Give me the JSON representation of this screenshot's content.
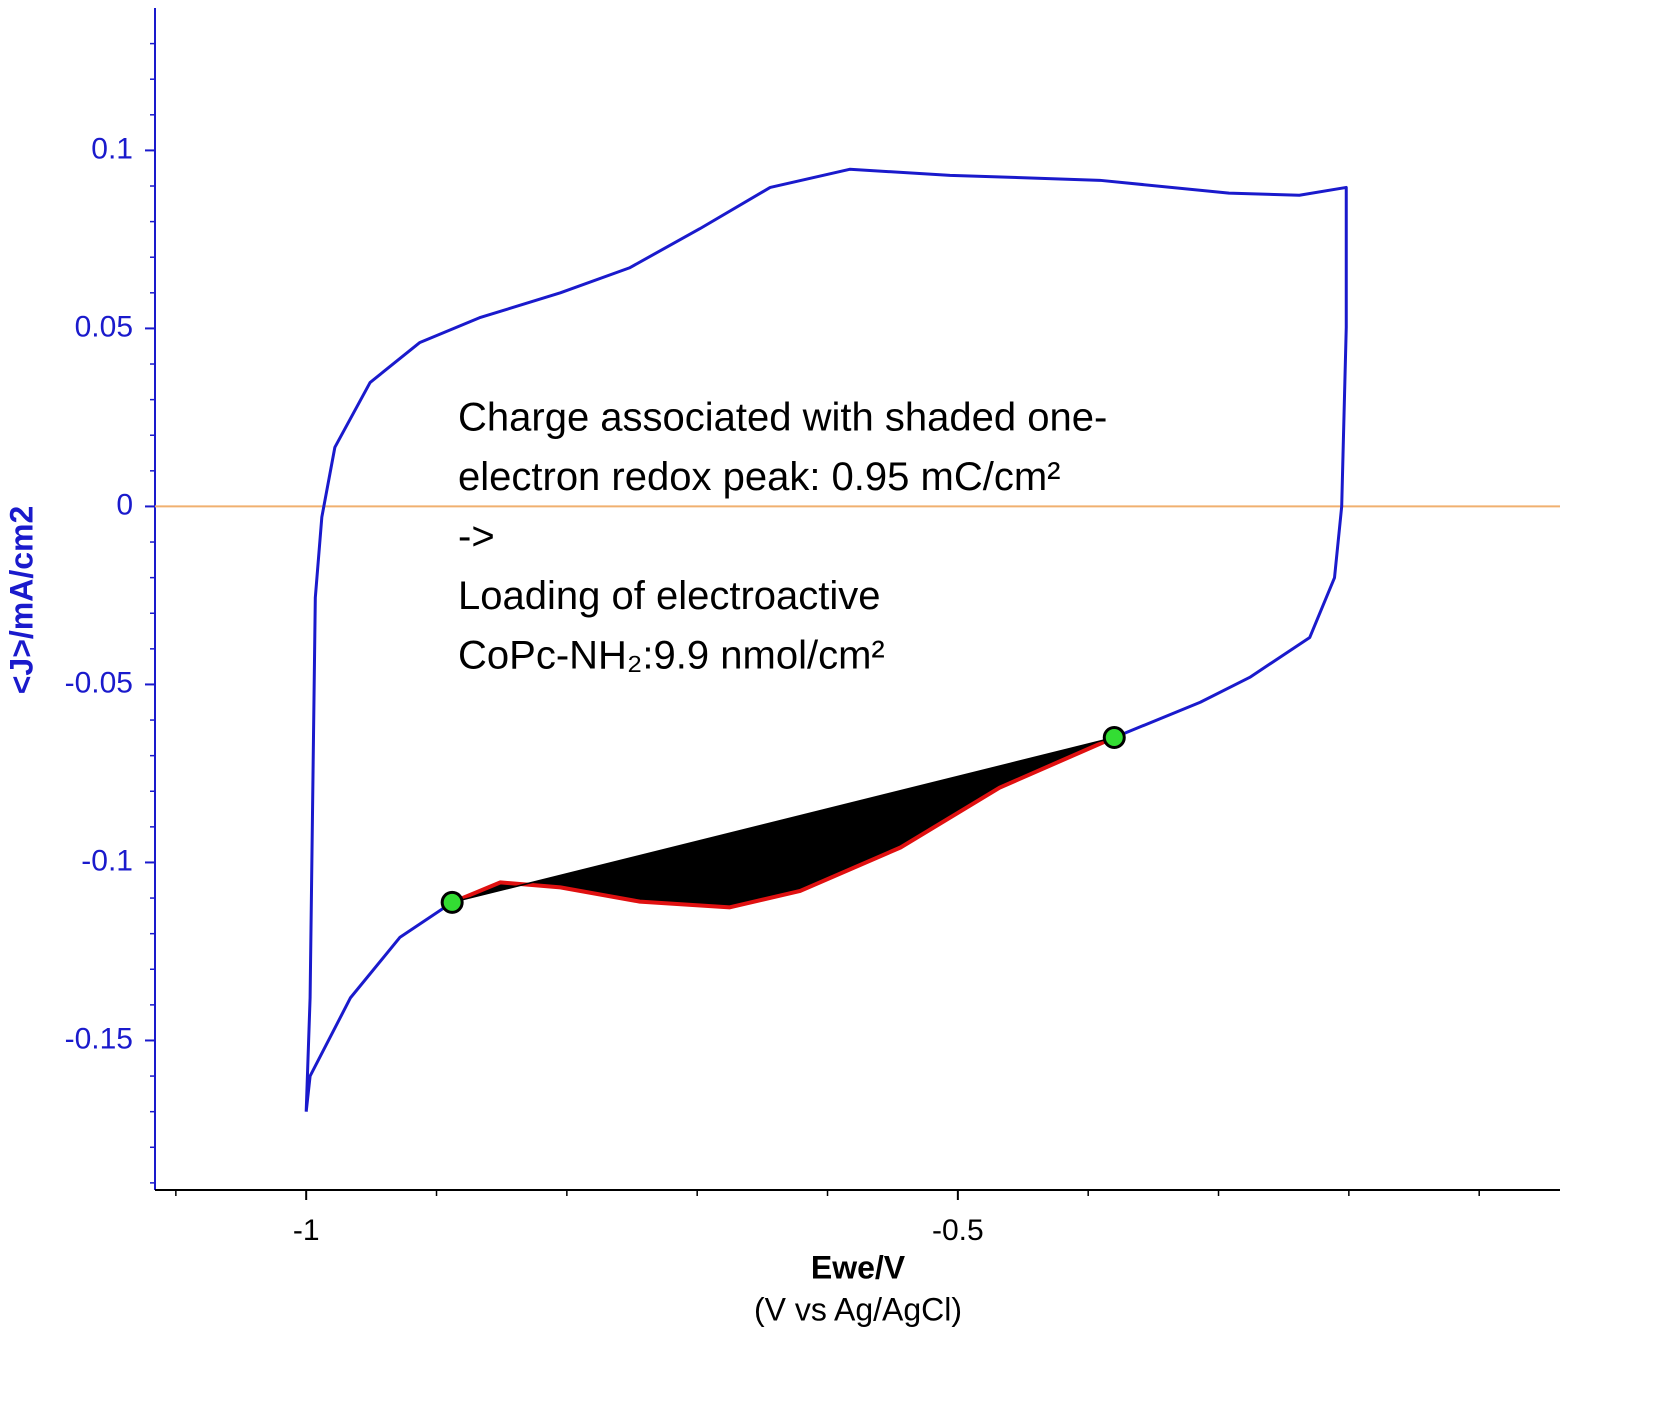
{
  "chart_data": {
    "type": "line",
    "xlabel": "Ewe/V",
    "xlabel_sub": "(V vs Ag/AgCl)",
    "ylabel": "<J>/mA/cm2",
    "xlim": [
      -1.116,
      -0.038
    ],
    "ylim": [
      -0.192,
      0.14
    ],
    "xticks": [
      -1,
      -0.5
    ],
    "yticks": [
      0.1,
      0.05,
      0,
      -0.05,
      -0.1,
      -0.15
    ],
    "xminor_ticks": [
      -1.1,
      -0.9,
      -0.8,
      -0.7,
      -0.6,
      -0.4,
      -0.3,
      -0.2,
      -0.1
    ],
    "yminor_ticks": [
      -0.19,
      -0.18,
      -0.17,
      -0.16,
      -0.14,
      -0.13,
      -0.12,
      -0.11,
      -0.09,
      -0.08,
      -0.07,
      -0.06,
      -0.04,
      -0.03,
      -0.02,
      -0.01,
      0.01,
      0.02,
      0.03,
      0.04,
      0.06,
      0.07,
      0.08,
      0.09,
      0.11,
      0.12,
      0.13
    ],
    "hline": {
      "value": 0,
      "color": "#f0b070"
    },
    "series": [
      {
        "color": "#1a1acc",
        "x": [
          -1,
          -0.997,
          -0.993,
          -0.988,
          -0.978,
          -0.951,
          -0.913,
          -0.867,
          -0.805,
          -0.752,
          -0.698,
          -0.644,
          -0.583,
          -0.506,
          -0.391,
          -0.292,
          -0.238,
          -0.202,
          -0.202,
          -0.2055,
          -0.211,
          -0.23,
          -0.276,
          -0.314,
          -0.38,
          -0.468,
          -0.544,
          -0.621,
          -0.675,
          -0.744,
          -0.805,
          -0.851,
          -0.888,
          -0.928,
          -0.966,
          -0.997,
          -1
        ],
        "values": [
          -0.17,
          -0.138,
          -0.0256,
          -0.003,
          0.0166,
          0.0348,
          0.046,
          0.053,
          0.06,
          0.067,
          0.078,
          0.0896,
          0.0947,
          0.093,
          0.0916,
          0.088,
          0.0874,
          0.0896,
          0.0503,
          0,
          -0.02,
          -0.0368,
          -0.048,
          -0.055,
          -0.0649,
          -0.079,
          -0.0958,
          -0.108,
          -0.1126,
          -0.111,
          -0.107,
          -0.1056,
          -0.1112,
          -0.121,
          -0.138,
          -0.16,
          -0.17
        ]
      },
      {
        "color": "#e01010",
        "fill": "#000000",
        "x": [
          -0.888,
          -0.851,
          -0.805,
          -0.744,
          -0.675,
          -0.621,
          -0.544,
          -0.468,
          -0.38
        ],
        "values": [
          -0.1112,
          -0.1056,
          -0.107,
          -0.111,
          -0.1126,
          -0.108,
          -0.0958,
          -0.079,
          -0.0649
        ]
      }
    ],
    "markers": {
      "color": "#33dd33",
      "x": [
        -0.888,
        -0.38
      ],
      "values": [
        -0.1112,
        -0.0649
      ]
    },
    "annotations": [
      "Charge associated with shaded one-",
      "electron redox peak: 0.95 mC/cm²",
      "->",
      "Loading of electroactive",
      "CoPc-NH₂:9.9 nmol/cm²"
    ]
  }
}
